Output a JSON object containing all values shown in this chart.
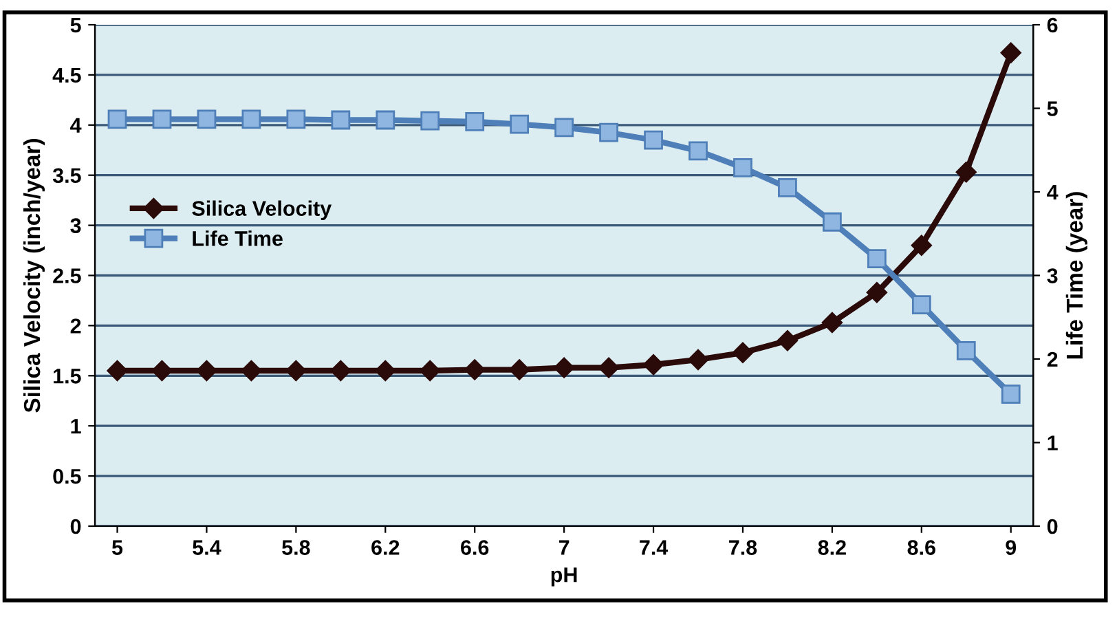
{
  "chart_data": {
    "type": "line",
    "xlabel": "pH",
    "ylabel": "Silica Velocity (inch/year)",
    "y2label": "Life Time (year)",
    "x": [
      5,
      5.2,
      5.4,
      5.6,
      5.8,
      6,
      6.2,
      6.4,
      6.6,
      6.8,
      7,
      7.2,
      7.4,
      7.6,
      7.8,
      8,
      8.2,
      8.4,
      8.6,
      8.8,
      9
    ],
    "series": [
      {
        "name": "Silica Velocity",
        "color": "#2b0a0a",
        "marker": "diamond",
        "values": [
          1.55,
          1.55,
          1.55,
          1.55,
          1.55,
          1.55,
          1.55,
          1.55,
          1.56,
          1.56,
          1.58,
          1.58,
          1.61,
          1.66,
          1.73,
          1.85,
          2.03,
          2.33,
          2.8,
          3.53,
          4.72
        ]
      },
      {
        "name": "Life Time",
        "color": "#4f7fb8",
        "marker": "square",
        "axis": "y2",
        "values": [
          4.87,
          4.87,
          4.87,
          4.87,
          4.87,
          4.86,
          4.86,
          4.85,
          4.84,
          4.81,
          4.77,
          4.71,
          4.62,
          4.49,
          4.29,
          4.05,
          3.64,
          3.2,
          2.65,
          2.1,
          1.58
        ]
      }
    ],
    "xlim": [
      4.9,
      9.1
    ],
    "xticks": [
      5,
      5.4,
      5.8,
      6.2,
      6.6,
      7,
      7.4,
      7.8,
      8.2,
      8.6,
      9
    ],
    "ylim": [
      0,
      5
    ],
    "yticks": [
      0,
      0.5,
      1,
      1.5,
      2,
      2.5,
      3,
      3.5,
      4,
      4.5,
      5
    ],
    "y2lim": [
      0,
      6
    ],
    "y2ticks": [
      0,
      1,
      2,
      3,
      4,
      5,
      6
    ],
    "grid": "y",
    "legend": "center left",
    "line_style": "solid"
  }
}
